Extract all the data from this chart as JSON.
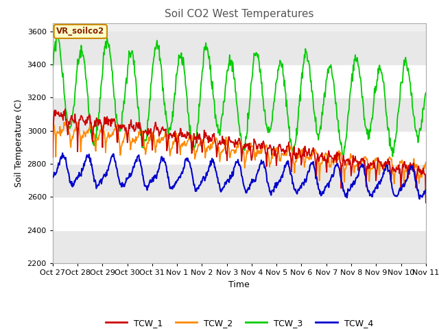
{
  "title": "Soil CO2 West Temperatures",
  "ylabel": "Soil Temperature (C)",
  "xlabel": "Time",
  "ylim": [
    2200,
    3650
  ],
  "xlim": [
    0,
    360
  ],
  "tick_labels": [
    "Oct 27",
    "Oct 28",
    "Oct 29",
    "Oct 30",
    "Oct 31",
    "Nov 1",
    "Nov 2",
    "Nov 3",
    "Nov 4",
    "Nov 5",
    "Nov 6",
    "Nov 7",
    "Nov 8",
    "Nov 9",
    "Nov 10",
    "Nov 11"
  ],
  "tick_positions": [
    0,
    24,
    48,
    72,
    96,
    120,
    144,
    168,
    192,
    216,
    240,
    264,
    288,
    312,
    336,
    360
  ],
  "colors": {
    "TCW_1": "#cc0000",
    "TCW_2": "#ff8800",
    "TCW_3": "#00cc00",
    "TCW_4": "#0000cc"
  },
  "annotation": "VR_soilco2",
  "annotation_facecolor": "#ffffcc",
  "annotation_edgecolor": "#cc8800",
  "annotation_textcolor": "#882200",
  "background_color": "#ffffff",
  "plot_bg_color": "#f0f0f0",
  "band1": [
    3200,
    3650
  ],
  "band2": [
    2750,
    3200
  ],
  "band1_color": "#ffffff",
  "band2_color": "#e8e8e8",
  "title_fontsize": 11,
  "axis_fontsize": 9,
  "tick_fontsize": 8
}
